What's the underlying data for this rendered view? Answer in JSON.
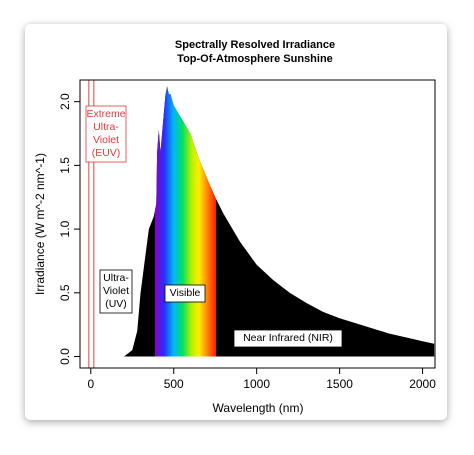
{
  "chart_data": {
    "type": "area",
    "title": [
      "Spectrally Resolved Irradiance",
      "Top-Of-Atmosphere Sunshine"
    ],
    "x_label": "Wavelength (nm)",
    "y_label": "Irradiance (W m^-2 nm^-1)",
    "x": [
      200,
      250,
      280,
      300,
      320,
      350,
      380,
      395,
      400,
      410,
      420,
      430,
      440,
      450,
      460,
      470,
      480,
      500,
      550,
      600,
      650,
      700,
      750,
      800,
      900,
      1000,
      1100,
      1200,
      1300,
      1400,
      1500,
      1600,
      1700,
      1800,
      1900,
      2000,
      2070
    ],
    "values": [
      0,
      0.05,
      0.2,
      0.5,
      0.7,
      1.0,
      1.1,
      1.2,
      1.6,
      1.78,
      1.6,
      1.75,
      1.9,
      2.05,
      2.12,
      2.06,
      2.06,
      1.97,
      1.86,
      1.75,
      1.56,
      1.4,
      1.25,
      1.12,
      0.9,
      0.72,
      0.6,
      0.5,
      0.42,
      0.35,
      0.3,
      0.26,
      0.22,
      0.18,
      0.15,
      0.12,
      0.1
    ],
    "color": "#000000",
    "xlim": [
      -65,
      2075
    ],
    "ylim": [
      -0.09,
      2.17
    ],
    "xticks": [
      0,
      500,
      1000,
      1500,
      2000
    ],
    "yticks": [
      {
        "value": 0,
        "label": "0.0"
      },
      0.5,
      {
        "value": 1,
        "label": "1.0"
      },
      1.5,
      {
        "value": 2,
        "label": "2.0"
      }
    ],
    "annotations": [
      {
        "lines": [
          "Extreme",
          "Ultra-",
          "Violet",
          "(EUV)"
        ],
        "color": "#e8383d"
      },
      {
        "lines": [
          "Ultra-",
          "Violet",
          "(UV)"
        ],
        "color": "#000000"
      },
      {
        "lines": [
          "Visible"
        ],
        "color": "#000000"
      },
      {
        "lines": [
          "Near Infrared (NIR)"
        ],
        "color": "#000000"
      }
    ]
  }
}
